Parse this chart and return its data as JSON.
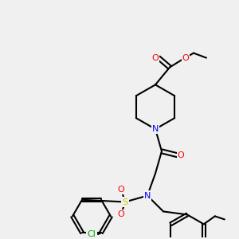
{
  "bg_color": "#f0f0f0",
  "bond_color": "#000000",
  "bond_lw": 1.5,
  "atom_colors": {
    "N": "#0000ff",
    "O": "#ff0000",
    "Cl": "#00aa00",
    "S": "#cccc00",
    "C": "#000000"
  },
  "font_size": 7.5
}
